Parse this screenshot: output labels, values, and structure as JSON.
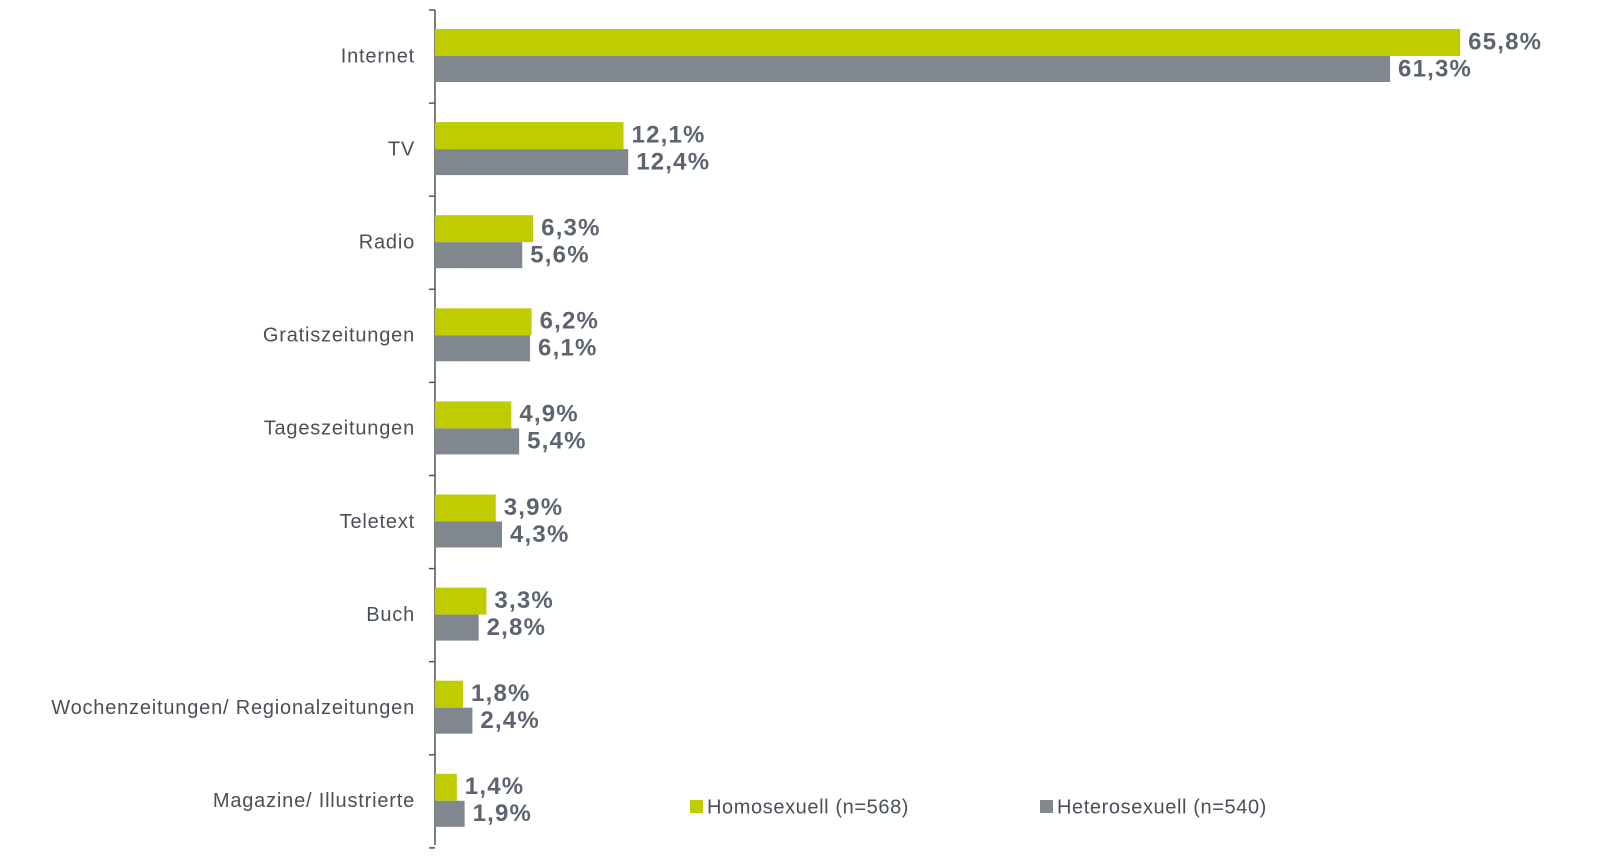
{
  "chart_data": {
    "type": "bar",
    "orientation": "horizontal",
    "categories": [
      "Internet",
      "TV",
      "Radio",
      "Gratiszeitungen",
      "Tageszeitungen",
      "Teletext",
      "Buch",
      "Wochenzeitungen/ Regionalzeitungen",
      "Magazine/ Illustrierte"
    ],
    "series": [
      {
        "name": "Homosexuell (n=568)",
        "color": "#bfcc00",
        "values": [
          65.8,
          12.1,
          6.3,
          6.2,
          4.9,
          3.9,
          3.3,
          1.8,
          1.4
        ],
        "value_labels": [
          "65,8%",
          "12,1%",
          "6,3%",
          "6,2%",
          "4,9%",
          "3,9%",
          "3,3%",
          "1,8%",
          "1,4%"
        ]
      },
      {
        "name": "Heterosexuell (n=540)",
        "color": "#80878f",
        "values": [
          61.3,
          12.4,
          5.6,
          6.1,
          5.4,
          4.3,
          2.8,
          2.4,
          1.9
        ],
        "value_labels": [
          "61,3%",
          "12,4%",
          "5,6%",
          "6,1%",
          "5,4%",
          "4,3%",
          "2,8%",
          "2,4%",
          "1,9%"
        ]
      }
    ],
    "legend": "bottom"
  }
}
